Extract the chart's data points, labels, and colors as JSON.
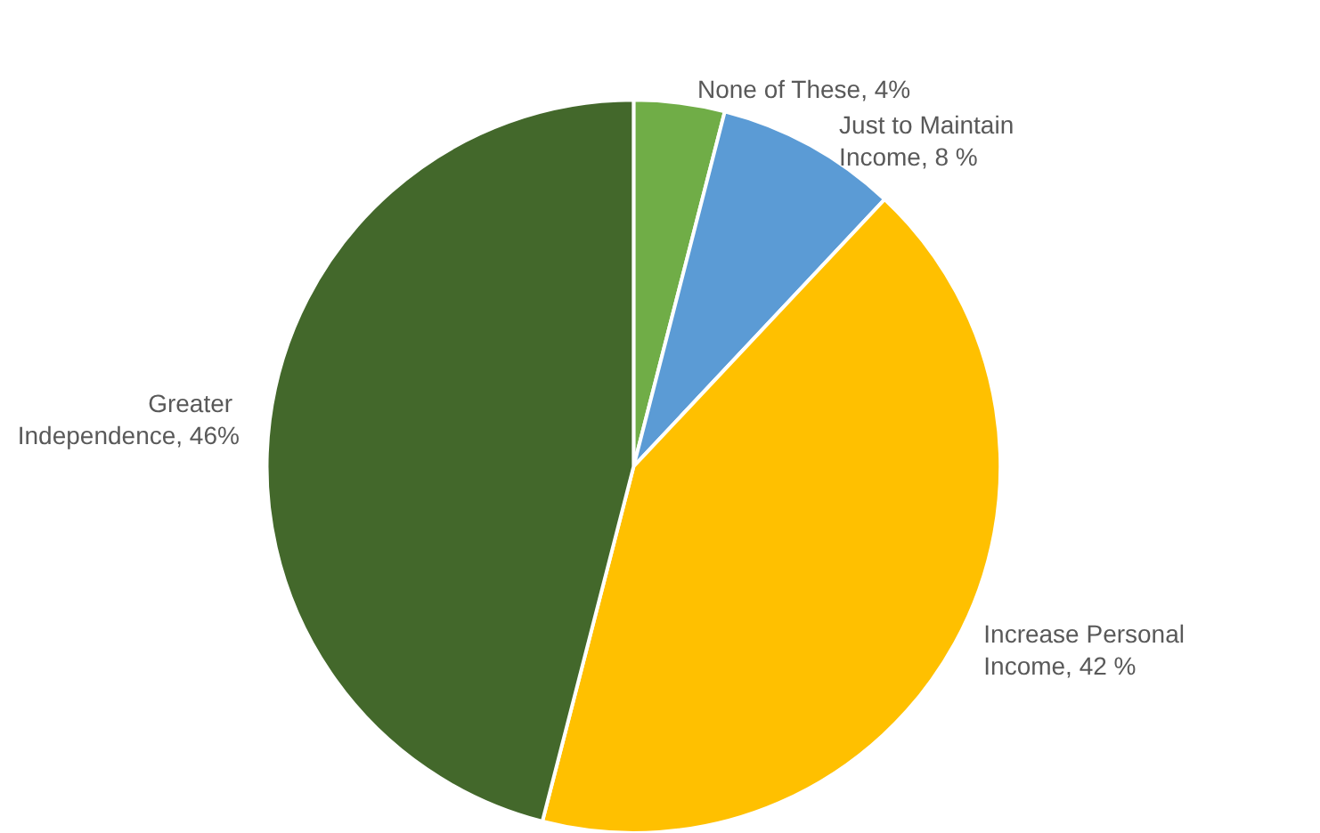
{
  "chart_data": {
    "type": "pie",
    "categories": [
      "None of These",
      "Just to Maintain Income",
      "Increase Personal Income",
      "Greater Independence"
    ],
    "values": [
      4,
      8,
      42,
      46
    ],
    "value_labels": [
      "4%",
      "8 %",
      "42 %",
      "46%"
    ],
    "colors": [
      "#70ad47",
      "#5b9bd5",
      "#ffc000",
      "#43682b"
    ],
    "legend": false
  }
}
